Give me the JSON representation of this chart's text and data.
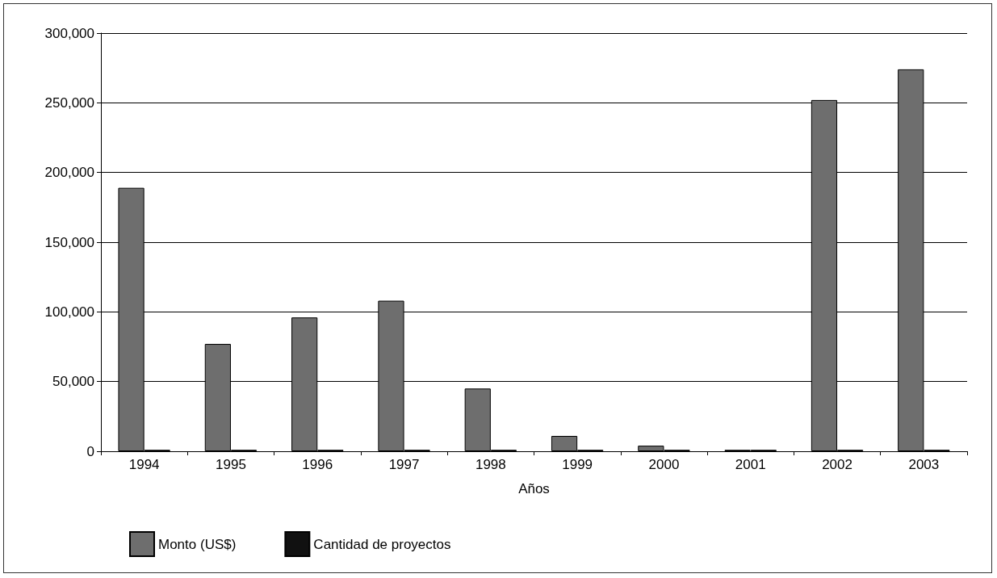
{
  "chart_data": {
    "type": "bar",
    "xlabel": "Años",
    "categories": [
      "1994",
      "1995",
      "1996",
      "1997",
      "1998",
      "1999",
      "2000",
      "2001",
      "2002",
      "2003"
    ],
    "series": [
      {
        "name": "Monto (US$)",
        "color": "#6e6e6e",
        "values": [
          189000,
          77000,
          96000,
          108000,
          45000,
          11000,
          4000,
          1000,
          252000,
          274000
        ]
      },
      {
        "name": "Cantidad de proyectos",
        "color": "#111111",
        "values": [
          1000,
          1000,
          1000,
          1000,
          1000,
          1000,
          1000,
          1000,
          1000,
          1000
        ]
      }
    ],
    "ylim": [
      0,
      300000
    ],
    "yticks": [
      0,
      {
        "value": 50000,
        "label": "50,000"
      },
      {
        "value": 100000,
        "label": "100,000"
      },
      {
        "value": 150000,
        "label": "150,000"
      },
      {
        "value": 200000,
        "label": "200,000"
      },
      {
        "value": 250000,
        "label": "250,000"
      },
      {
        "value": 300000,
        "label": "300,000"
      }
    ],
    "grid": "y",
    "legend": "bottom left"
  }
}
